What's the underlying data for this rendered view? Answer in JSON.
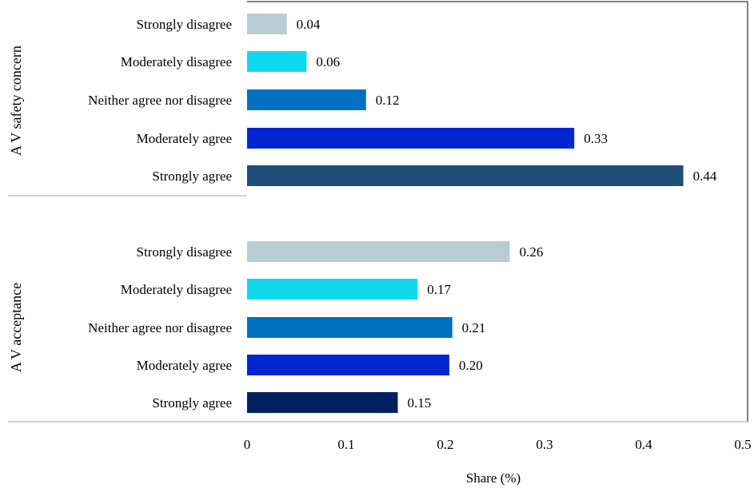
{
  "chart_data": {
    "type": "bar",
    "orientation": "horizontal",
    "xlabel": "Share (%)",
    "xlim": [
      0,
      0.5
    ],
    "xticks": [
      "0",
      "0.1",
      "0.2",
      "0.3",
      "0.4",
      "0.5"
    ],
    "grid": false,
    "legend": "none",
    "groups": [
      {
        "name": "A V safety concern",
        "bars": [
          {
            "label": "Strongly disagree",
            "value": 0.04,
            "value_label": "0.04",
            "color": "#b7cdd3"
          },
          {
            "label": "Moderately disagree",
            "value": 0.06,
            "value_label": "0.06",
            "color": "#10d8ec"
          },
          {
            "label": "Neither agree nor disagree",
            "value": 0.12,
            "value_label": "0.12",
            "color": "#0070c0"
          },
          {
            "label": "Moderately agree",
            "value": 0.33,
            "value_label": "0.33",
            "color": "#0026d1"
          },
          {
            "label": "Strongly agree",
            "value": 0.44,
            "value_label": "0.44",
            "color": "#1f4e79"
          }
        ]
      },
      {
        "name": "A V acceptance",
        "bars": [
          {
            "label": "Strongly disagree",
            "value": 0.265,
            "value_label": "0.26",
            "color": "#b7cdd3"
          },
          {
            "label": "Moderately disagree",
            "value": 0.172,
            "value_label": "0.17",
            "color": "#10d8ec"
          },
          {
            "label": "Neither agree nor disagree",
            "value": 0.207,
            "value_label": "0.21",
            "color": "#0070c0"
          },
          {
            "label": "Moderately agree",
            "value": 0.204,
            "value_label": "0.20",
            "color": "#0026d1"
          },
          {
            "label": "Strongly agree",
            "value": 0.152,
            "value_label": "0.15",
            "color": "#002060"
          }
        ]
      }
    ]
  }
}
